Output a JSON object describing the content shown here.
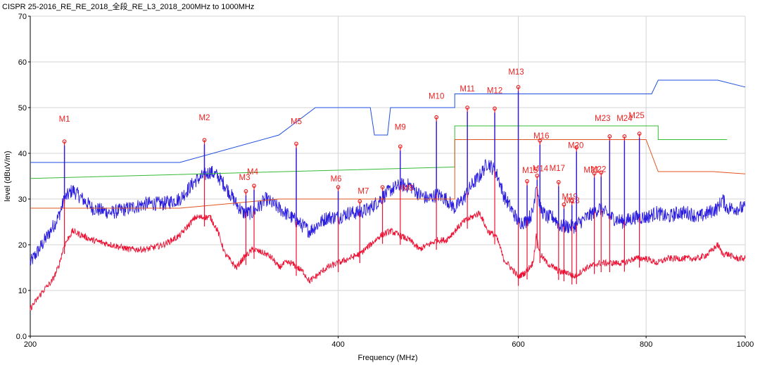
{
  "title": "CISPR 25-2016_RE_RE_2018_全段_RE_L3_2018_200MHz to 1000MHz",
  "chart_data": {
    "type": "line",
    "title": "CISPR 25-2016_RE_RE_2018_全段_RE_L3_2018_200MHz to 1000MHz",
    "xlabel": "Frequency (MHz)",
    "ylabel": "level (dBuV/m)",
    "xlim": [
      200,
      1000
    ],
    "ylim": [
      0,
      70
    ],
    "x_scale": "log",
    "x_ticks": [
      200,
      400,
      600,
      800,
      1000
    ],
    "x_tick_labels": [
      "200",
      "400",
      "600",
      "800",
      "1000"
    ],
    "y_ticks": [
      0,
      10,
      20,
      30,
      40,
      50,
      60,
      70
    ],
    "y_tick_labels": [
      "0.0",
      "10",
      "20",
      "30",
      "40",
      "50",
      "60",
      "70"
    ],
    "grid": true,
    "colors": {
      "peak": "#2b1de0",
      "average": "#ee1133",
      "limit_peak": "#1f4fe0",
      "limit_qp": "#33bb33",
      "limit_avg": "#e05522",
      "marker": "#ee2222"
    },
    "series": [
      {
        "key": "limit_peak",
        "x": [
          200,
          280,
          350,
          380,
          430,
          434,
          447,
          450,
          520,
          520,
          810,
          822,
          940,
          1000
        ],
        "values": [
          38,
          38,
          44,
          50,
          50,
          44,
          44,
          50,
          50,
          53,
          53,
          56,
          56,
          54.5
        ]
      },
      {
        "key": "limit_qp",
        "x": [
          200,
          520,
          520,
          822,
          822,
          960
        ],
        "values": [
          34.5,
          37,
          46,
          46,
          43,
          43
        ]
      },
      {
        "key": "limit_avg",
        "x": [
          200,
          280,
          350,
          520,
          520,
          800,
          822,
          930,
          1000
        ],
        "values": [
          28,
          28,
          30,
          30,
          43,
          43,
          36,
          36,
          35.5
        ]
      },
      {
        "key": "peak",
        "x": [
          200,
          204,
          208,
          213,
          216,
          220,
          225,
          230,
          240,
          250,
          260,
          270,
          280,
          290,
          300,
          305,
          310,
          318,
          323,
          330,
          340,
          345,
          350,
          355,
          360,
          370,
          375,
          380,
          385,
          390,
          400,
          410,
          420,
          430,
          440,
          450,
          460,
          470,
          480,
          490,
          500,
          510,
          520,
          530,
          540,
          550,
          560,
          570,
          575,
          580,
          590,
          600,
          610,
          620,
          625,
          630,
          640,
          650,
          660,
          670,
          680,
          690,
          700,
          720,
          740,
          760,
          780,
          800,
          820,
          840,
          860,
          880,
          900,
          920,
          940,
          950,
          960,
          980,
          1000
        ],
        "values": [
          16,
          19,
          22,
          26,
          30,
          32,
          30,
          28,
          27,
          28,
          29,
          29,
          30,
          34,
          36,
          35,
          33,
          29,
          27,
          27,
          30,
          29,
          28,
          27,
          26,
          24,
          23,
          24,
          25,
          26,
          26,
          27,
          27,
          28,
          30,
          32,
          33,
          33,
          31,
          30,
          31,
          30,
          28,
          30,
          33,
          35,
          38,
          36,
          34,
          31,
          28,
          25,
          25,
          27,
          34,
          28,
          26,
          26,
          24,
          24,
          24,
          25,
          26,
          28,
          26,
          25,
          26,
          26,
          27,
          26,
          27,
          27,
          26,
          27,
          28,
          30,
          28,
          28,
          28
        ]
      },
      {
        "key": "average",
        "x": [
          200,
          203,
          206,
          210,
          213,
          216,
          220,
          225,
          230,
          240,
          250,
          260,
          270,
          280,
          290,
          300,
          305,
          310,
          318,
          323,
          330,
          340,
          345,
          350,
          355,
          360,
          370,
          375,
          380,
          385,
          390,
          400,
          410,
          420,
          430,
          440,
          450,
          460,
          470,
          480,
          490,
          500,
          510,
          520,
          530,
          540,
          550,
          560,
          570,
          575,
          580,
          590,
          600,
          610,
          620,
          625,
          630,
          640,
          650,
          660,
          670,
          680,
          690,
          700,
          720,
          740,
          760,
          780,
          800,
          820,
          840,
          860,
          880,
          900,
          920,
          940,
          950,
          960,
          980,
          1000
        ],
        "values": [
          6,
          8,
          10,
          12,
          15,
          20,
          23,
          22,
          21,
          20,
          19,
          19,
          20,
          22,
          26,
          26,
          23,
          18,
          15,
          17,
          19,
          18,
          17,
          15,
          16,
          16,
          14,
          12,
          13,
          14,
          15,
          16,
          17,
          18,
          20,
          22,
          23,
          22,
          21,
          19,
          20,
          21,
          21,
          23,
          25,
          26,
          27,
          23,
          22,
          20,
          17,
          15,
          13,
          14,
          16,
          22,
          18,
          16,
          15,
          14,
          14,
          13,
          14,
          15,
          16,
          16,
          16,
          17,
          17,
          16,
          17,
          17,
          17,
          17,
          18,
          20,
          18,
          18,
          17,
          17
        ]
      }
    ],
    "markers": [
      {
        "label": "M1",
        "x": 216,
        "y": 42.6,
        "color": "#ee2222"
      },
      {
        "label": "M2",
        "x": 296,
        "y": 42.9,
        "color": "#ee2222"
      },
      {
        "label": "M3",
        "x": 325,
        "y": 31.7,
        "color": "#ee2222"
      },
      {
        "label": "M4",
        "x": 331,
        "y": 32.9,
        "color": "#ee2222"
      },
      {
        "label": "M5",
        "x": 364,
        "y": 42.1,
        "color": "#ee2222"
      },
      {
        "label": "M6",
        "x": 400,
        "y": 32.6,
        "color": "#ee2222"
      },
      {
        "label": "M7",
        "x": 420,
        "y": 29.5,
        "color": "#ee2222"
      },
      {
        "label": "M8",
        "x": 442,
        "y": 32.6,
        "color": "#ee2222"
      },
      {
        "label": "M9",
        "x": 460,
        "y": 41.5,
        "color": "#ee2222"
      },
      {
        "label": "M10",
        "x": 499,
        "y": 47.9,
        "color": "#ee2222"
      },
      {
        "label": "M11",
        "x": 535,
        "y": 50.0,
        "color": "#ee2222"
      },
      {
        "label": "M12",
        "x": 569,
        "y": 49.8,
        "color": "#ee2222"
      },
      {
        "label": "M13",
        "x": 600,
        "y": 54.5,
        "color": "#ee2222"
      },
      {
        "label": "M14",
        "x": 612,
        "y": 33.9,
        "color": "#ee2222"
      },
      {
        "label": "M15",
        "x": 626,
        "y": 35.1,
        "color": "#ee2222"
      },
      {
        "label": "M16",
        "x": 630,
        "y": 42.8,
        "color": "#ee2222"
      },
      {
        "label": "M17",
        "x": 657,
        "y": 33.7,
        "color": "#ee2222"
      },
      {
        "label": "M18",
        "x": 665,
        "y": 28.8,
        "color": "#ee2222"
      },
      {
        "label": "M19",
        "x": 677,
        "y": 29.6,
        "color": "#ee2222"
      },
      {
        "label": "M20",
        "x": 684,
        "y": 41.3,
        "color": "#ee2222"
      },
      {
        "label": "M21",
        "x": 712,
        "y": 35.6,
        "color": "#ee2222"
      },
      {
        "label": "M22",
        "x": 723,
        "y": 35.8,
        "color": "#ee2222"
      },
      {
        "label": "M23",
        "x": 737,
        "y": 43.7,
        "color": "#ee2222"
      },
      {
        "label": "M24",
        "x": 762,
        "y": 43.7,
        "color": "#ee2222"
      },
      {
        "label": "M25",
        "x": 788,
        "y": 44.3,
        "color": "#ee2222"
      }
    ]
  }
}
